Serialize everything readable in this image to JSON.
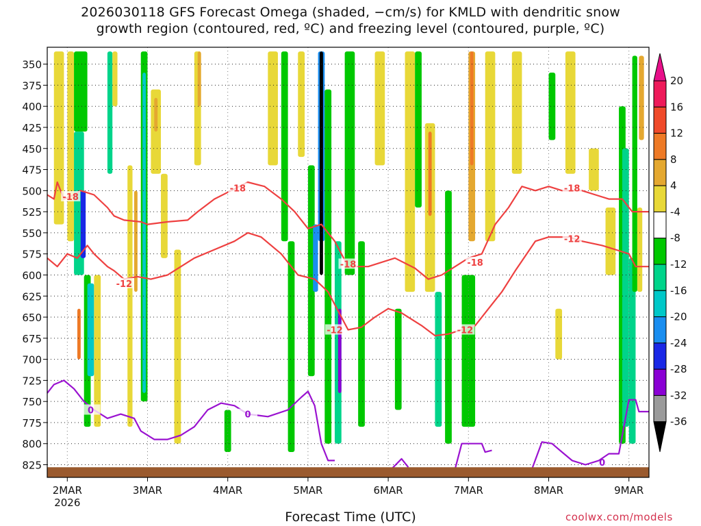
{
  "title_line1": "2026030118 GFS Forecast Omega (shaded, −cm/s) for KMLD with dendritic snow",
  "title_line2": "growth region (contoured, red, ºC) and freezing level (contoured, purple, ºC)",
  "x_axis_title": "Forecast Time (UTC)",
  "credit": "coolwx.com/models",
  "chart_data": {
    "type": "heatmap",
    "title": "2026030118 GFS Forecast Omega (shaded, −cm/s) for KMLD",
    "x_ticks": [
      {
        "label": "2MAR",
        "t": 6,
        "sub": "2026"
      },
      {
        "label": "3MAR",
        "t": 30
      },
      {
        "label": "4MAR",
        "t": 54
      },
      {
        "label": "5MAR",
        "t": 78
      },
      {
        "label": "6MAR",
        "t": 102
      },
      {
        "label": "7MAR",
        "t": 126
      },
      {
        "label": "8MAR",
        "t": 150
      },
      {
        "label": "9MAR",
        "t": 174
      }
    ],
    "xlim": [
      0,
      180
    ],
    "y_ticks": [
      350,
      375,
      400,
      425,
      450,
      475,
      500,
      525,
      550,
      575,
      600,
      625,
      650,
      675,
      700,
      725,
      750,
      775,
      800,
      825
    ],
    "ylim": [
      330,
      840
    ],
    "colorbar": {
      "labels": [
        "20",
        "16",
        "12",
        "8",
        "4",
        "-4",
        "-8",
        "-12",
        "-16",
        "-20",
        "-24",
        "-28",
        "-32",
        "-36"
      ],
      "colors": [
        "#ee1a5a",
        "#f04a2a",
        "#ee7a26",
        "#e4a830",
        "#e8d838",
        "#ffffff",
        "#00c800",
        "#00d48a",
        "#00c8c8",
        "#1a8ef0",
        "#1a28e6",
        "#8a00d4",
        "#9a9a9a",
        "#000000"
      ],
      "top_arrow_color": "#e8108a",
      "bottom_arrow_color": "#000000"
    },
    "omega_bands": [
      {
        "t0": 2,
        "t1": 5,
        "p0": 335,
        "p1": 540,
        "cat": "pos4"
      },
      {
        "t0": 6,
        "t1": 8,
        "p0": 335,
        "p1": 560,
        "cat": "pos4"
      },
      {
        "t0": 8,
        "t1": 12,
        "p0": 335,
        "p1": 430,
        "cat": "neg8"
      },
      {
        "t0": 8,
        "t1": 11,
        "p0": 430,
        "p1": 600,
        "cat": "neg12"
      },
      {
        "t0": 10,
        "t1": 11.5,
        "p0": 500,
        "p1": 580,
        "cat": "neg24"
      },
      {
        "t0": 11,
        "t1": 13,
        "p0": 600,
        "p1": 780,
        "cat": "neg8"
      },
      {
        "t0": 12,
        "t1": 14,
        "p0": 610,
        "p1": 720,
        "cat": "neg16"
      },
      {
        "t0": 9,
        "t1": 10,
        "p0": 640,
        "p1": 700,
        "cat": "pos12"
      },
      {
        "t0": 14,
        "t1": 16,
        "p0": 600,
        "p1": 780,
        "cat": "pos4"
      },
      {
        "t0": 18,
        "t1": 19.5,
        "p0": 335,
        "p1": 480,
        "cat": "neg12"
      },
      {
        "t0": 19.5,
        "t1": 21,
        "p0": 335,
        "p1": 400,
        "cat": "pos4"
      },
      {
        "t0": 24,
        "t1": 25.5,
        "p0": 470,
        "p1": 780,
        "cat": "pos4"
      },
      {
        "t0": 26,
        "t1": 27,
        "p0": 500,
        "p1": 620,
        "cat": "pos8"
      },
      {
        "t0": 28,
        "t1": 30,
        "p0": 335,
        "p1": 750,
        "cat": "neg8"
      },
      {
        "t0": 28.5,
        "t1": 29.5,
        "p0": 360,
        "p1": 740,
        "cat": "neg16"
      },
      {
        "t0": 31,
        "t1": 34,
        "p0": 380,
        "p1": 480,
        "cat": "pos4"
      },
      {
        "t0": 32,
        "t1": 33,
        "p0": 390,
        "p1": 430,
        "cat": "pos8"
      },
      {
        "t0": 34,
        "t1": 36,
        "p0": 480,
        "p1": 580,
        "cat": "pos4"
      },
      {
        "t0": 38,
        "t1": 40,
        "p0": 570,
        "p1": 800,
        "cat": "pos4"
      },
      {
        "t0": 44,
        "t1": 46,
        "p0": 335,
        "p1": 470,
        "cat": "pos4"
      },
      {
        "t0": 45,
        "t1": 46,
        "p0": 335,
        "p1": 400,
        "cat": "pos8"
      },
      {
        "t0": 53,
        "t1": 55,
        "p0": 760,
        "p1": 810,
        "cat": "neg8"
      },
      {
        "t0": 66,
        "t1": 69,
        "p0": 335,
        "p1": 470,
        "cat": "pos4"
      },
      {
        "t0": 70,
        "t1": 72,
        "p0": 335,
        "p1": 560,
        "cat": "neg8"
      },
      {
        "t0": 72,
        "t1": 74,
        "p0": 560,
        "p1": 810,
        "cat": "neg8"
      },
      {
        "t0": 75,
        "t1": 77,
        "p0": 335,
        "p1": 460,
        "cat": "pos4"
      },
      {
        "t0": 78,
        "t1": 80,
        "p0": 470,
        "p1": 720,
        "cat": "neg8"
      },
      {
        "t0": 79.5,
        "t1": 81,
        "p0": 540,
        "p1": 620,
        "cat": "neg20"
      },
      {
        "t0": 81,
        "t1": 83,
        "p0": 335,
        "p1": 560,
        "cat": "neg20"
      },
      {
        "t0": 81.5,
        "t1": 82.5,
        "p0": 335,
        "p1": 600,
        "cat": "neg36"
      },
      {
        "t0": 83,
        "t1": 85,
        "p0": 380,
        "p1": 800,
        "cat": "neg8"
      },
      {
        "t0": 86,
        "t1": 88,
        "p0": 560,
        "p1": 800,
        "cat": "neg12"
      },
      {
        "t0": 87,
        "t1": 88,
        "p0": 640,
        "p1": 740,
        "cat": "neg28"
      },
      {
        "t0": 89,
        "t1": 92,
        "p0": 335,
        "p1": 600,
        "cat": "neg8"
      },
      {
        "t0": 93,
        "t1": 95,
        "p0": 560,
        "p1": 780,
        "cat": "neg8"
      },
      {
        "t0": 98,
        "t1": 101,
        "p0": 335,
        "p1": 470,
        "cat": "pos4"
      },
      {
        "t0": 104,
        "t1": 106,
        "p0": 640,
        "p1": 760,
        "cat": "neg8"
      },
      {
        "t0": 107,
        "t1": 110,
        "p0": 335,
        "p1": 620,
        "cat": "pos4"
      },
      {
        "t0": 110,
        "t1": 112,
        "p0": 335,
        "p1": 520,
        "cat": "neg8"
      },
      {
        "t0": 113,
        "t1": 116,
        "p0": 420,
        "p1": 620,
        "cat": "pos4"
      },
      {
        "t0": 114,
        "t1": 115,
        "p0": 430,
        "p1": 530,
        "cat": "pos12"
      },
      {
        "t0": 116,
        "t1": 118,
        "p0": 620,
        "p1": 780,
        "cat": "neg12"
      },
      {
        "t0": 119,
        "t1": 121,
        "p0": 500,
        "p1": 800,
        "cat": "neg8"
      },
      {
        "t0": 124,
        "t1": 128,
        "p0": 600,
        "p1": 780,
        "cat": "neg8"
      },
      {
        "t0": 126,
        "t1": 128,
        "p0": 335,
        "p1": 560,
        "cat": "pos8"
      },
      {
        "t0": 126.5,
        "t1": 127.5,
        "p0": 335,
        "p1": 470,
        "cat": "pos12"
      },
      {
        "t0": 131,
        "t1": 134,
        "p0": 335,
        "p1": 560,
        "cat": "pos4"
      },
      {
        "t0": 139,
        "t1": 142,
        "p0": 335,
        "p1": 480,
        "cat": "pos4"
      },
      {
        "t0": 150,
        "t1": 152,
        "p0": 360,
        "p1": 440,
        "cat": "neg8"
      },
      {
        "t0": 152,
        "t1": 154,
        "p0": 640,
        "p1": 700,
        "cat": "pos4"
      },
      {
        "t0": 155,
        "t1": 158,
        "p0": 335,
        "p1": 480,
        "cat": "pos4"
      },
      {
        "t0": 162,
        "t1": 165,
        "p0": 450,
        "p1": 500,
        "cat": "pos4"
      },
      {
        "t0": 167,
        "t1": 170,
        "p0": 520,
        "p1": 600,
        "cat": "pos4"
      },
      {
        "t0": 171,
        "t1": 173,
        "p0": 400,
        "p1": 800,
        "cat": "neg8"
      },
      {
        "t0": 172,
        "t1": 174,
        "p0": 450,
        "p1": 780,
        "cat": "neg12"
      },
      {
        "t0": 174,
        "t1": 176,
        "p0": 580,
        "p1": 800,
        "cat": "neg12"
      },
      {
        "t0": 175,
        "t1": 176.5,
        "p0": 340,
        "p1": 620,
        "cat": "neg8"
      },
      {
        "t0": 176.5,
        "t1": 178,
        "p0": 520,
        "p1": 620,
        "cat": "pos4"
      },
      {
        "t0": 177,
        "t1": 178.5,
        "p0": 340,
        "p1": 440,
        "cat": "pos8"
      }
    ],
    "contours": [
      {
        "name": "-18",
        "color": "#ee4040",
        "label_points": [
          [
            7,
            507
          ],
          [
            57,
            497
          ],
          [
            90,
            587
          ],
          [
            128,
            585
          ],
          [
            157,
            497
          ]
        ],
        "points": [
          [
            0,
            505
          ],
          [
            2,
            510
          ],
          [
            3,
            490
          ],
          [
            5,
            510
          ],
          [
            8,
            505
          ],
          [
            10,
            500
          ],
          [
            14,
            505
          ],
          [
            18,
            520
          ],
          [
            20,
            530
          ],
          [
            23,
            535
          ],
          [
            28,
            537
          ],
          [
            30,
            540
          ],
          [
            36,
            537
          ],
          [
            42,
            535
          ],
          [
            45,
            525
          ],
          [
            50,
            510
          ],
          [
            55,
            500
          ],
          [
            60,
            490
          ],
          [
            65,
            495
          ],
          [
            70,
            510
          ],
          [
            74,
            525
          ],
          [
            78,
            545
          ],
          [
            82,
            540
          ],
          [
            86,
            560
          ],
          [
            90,
            590
          ],
          [
            96,
            590
          ],
          [
            104,
            580
          ],
          [
            110,
            592
          ],
          [
            114,
            605
          ],
          [
            118,
            600
          ],
          [
            122,
            590
          ],
          [
            126,
            580
          ],
          [
            130,
            575
          ],
          [
            134,
            540
          ],
          [
            138,
            520
          ],
          [
            142,
            495
          ],
          [
            146,
            500
          ],
          [
            150,
            495
          ],
          [
            154,
            500
          ],
          [
            160,
            500
          ],
          [
            164,
            505
          ],
          [
            168,
            510
          ],
          [
            172,
            510
          ],
          [
            175,
            525
          ],
          [
            178,
            525
          ],
          [
            180,
            525
          ]
        ]
      },
      {
        "name": "-12",
        "color": "#ee4040",
        "label_points": [
          [
            23,
            610
          ],
          [
            86,
            665
          ],
          [
            125,
            665
          ],
          [
            157,
            557
          ]
        ],
        "points": [
          [
            0,
            580
          ],
          [
            3,
            590
          ],
          [
            6,
            575
          ],
          [
            9,
            580
          ],
          [
            12,
            565
          ],
          [
            14,
            575
          ],
          [
            18,
            590
          ],
          [
            20,
            595
          ],
          [
            23,
            605
          ],
          [
            27,
            602
          ],
          [
            31,
            605
          ],
          [
            36,
            600
          ],
          [
            40,
            590
          ],
          [
            44,
            580
          ],
          [
            50,
            570
          ],
          [
            56,
            560
          ],
          [
            60,
            550
          ],
          [
            64,
            555
          ],
          [
            70,
            575
          ],
          [
            75,
            600
          ],
          [
            80,
            605
          ],
          [
            84,
            620
          ],
          [
            88,
            650
          ],
          [
            90,
            665
          ],
          [
            94,
            662
          ],
          [
            98,
            650
          ],
          [
            102,
            640
          ],
          [
            106,
            645
          ],
          [
            112,
            660
          ],
          [
            116,
            672
          ],
          [
            120,
            670
          ],
          [
            124,
            665
          ],
          [
            128,
            660
          ],
          [
            132,
            640
          ],
          [
            136,
            620
          ],
          [
            140,
            595
          ],
          [
            146,
            560
          ],
          [
            150,
            555
          ],
          [
            156,
            555
          ],
          [
            160,
            560
          ],
          [
            166,
            565
          ],
          [
            170,
            570
          ],
          [
            174,
            575
          ],
          [
            176,
            590
          ],
          [
            180,
            590
          ]
        ]
      },
      {
        "name": "0",
        "color": "#9a12d0",
        "label_points": [
          [
            13,
            760
          ],
          [
            60,
            765
          ],
          [
            166,
            822
          ]
        ],
        "points": [
          [
            0,
            740
          ],
          [
            2,
            730
          ],
          [
            5,
            725
          ],
          [
            8,
            735
          ],
          [
            11,
            750
          ],
          [
            14,
            760
          ],
          [
            18,
            770
          ],
          [
            22,
            765
          ],
          [
            26,
            770
          ],
          [
            28,
            785
          ],
          [
            32,
            795
          ],
          [
            36,
            795
          ],
          [
            40,
            790
          ],
          [
            44,
            780
          ],
          [
            48,
            760
          ],
          [
            52,
            752
          ],
          [
            56,
            755
          ],
          [
            60,
            765
          ],
          [
            66,
            768
          ],
          [
            72,
            760
          ],
          [
            76,
            745
          ],
          [
            78,
            738
          ],
          [
            80,
            755
          ],
          [
            82,
            800
          ],
          [
            84,
            820
          ],
          [
            86,
            820
          ]
        ]
      },
      {
        "name": "0b",
        "color": "#9a12d0",
        "label_points": [],
        "points": [
          [
            103,
            830
          ],
          [
            106,
            818
          ],
          [
            108,
            828
          ]
        ]
      },
      {
        "name": "0c",
        "color": "#9a12d0",
        "label_points": [],
        "points": [
          [
            122,
            830
          ],
          [
            124,
            800
          ],
          [
            130,
            800
          ],
          [
            131,
            810
          ],
          [
            133,
            808
          ]
        ]
      },
      {
        "name": "0d",
        "color": "#9a12d0",
        "label_points": [],
        "points": [
          [
            145,
            830
          ],
          [
            148,
            798
          ],
          [
            151,
            800
          ],
          [
            154,
            810
          ],
          [
            157,
            820
          ],
          [
            161,
            825
          ],
          [
            165,
            820
          ],
          [
            168,
            812
          ],
          [
            171,
            812
          ],
          [
            174,
            748
          ],
          [
            176,
            748
          ],
          [
            177,
            762
          ],
          [
            180,
            762
          ]
        ]
      }
    ],
    "terrain_pressure": 828
  }
}
